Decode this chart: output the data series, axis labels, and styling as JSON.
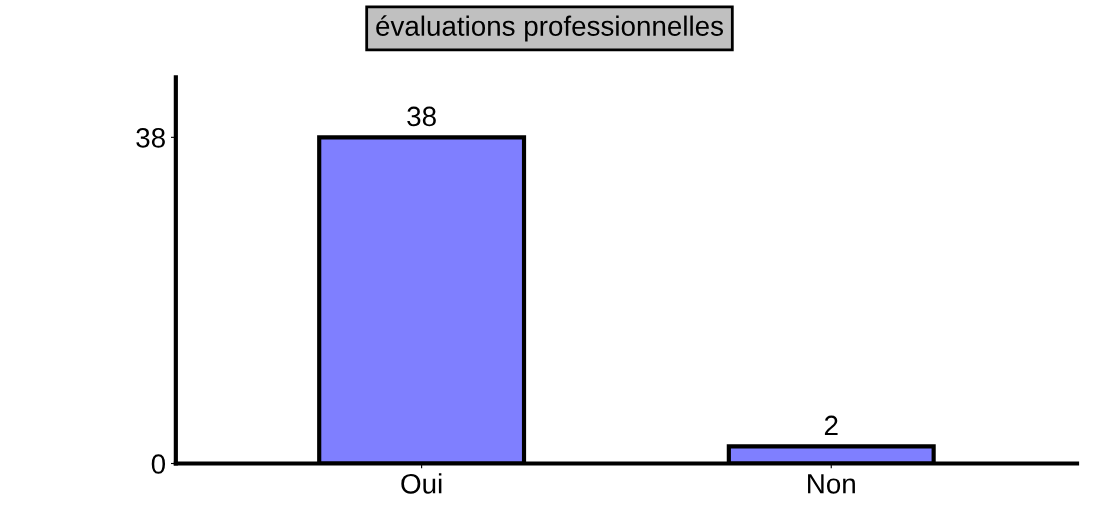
{
  "chart_data": {
    "type": "bar",
    "title": "évaluations professionnelles",
    "categories": [
      "Oui",
      "Non"
    ],
    "values": [
      38,
      2
    ],
    "color": "#7f7fff",
    "ylim": [
      0,
      45
    ],
    "yticks": [
      0,
      38
    ],
    "grid": false,
    "data_labels": true
  }
}
